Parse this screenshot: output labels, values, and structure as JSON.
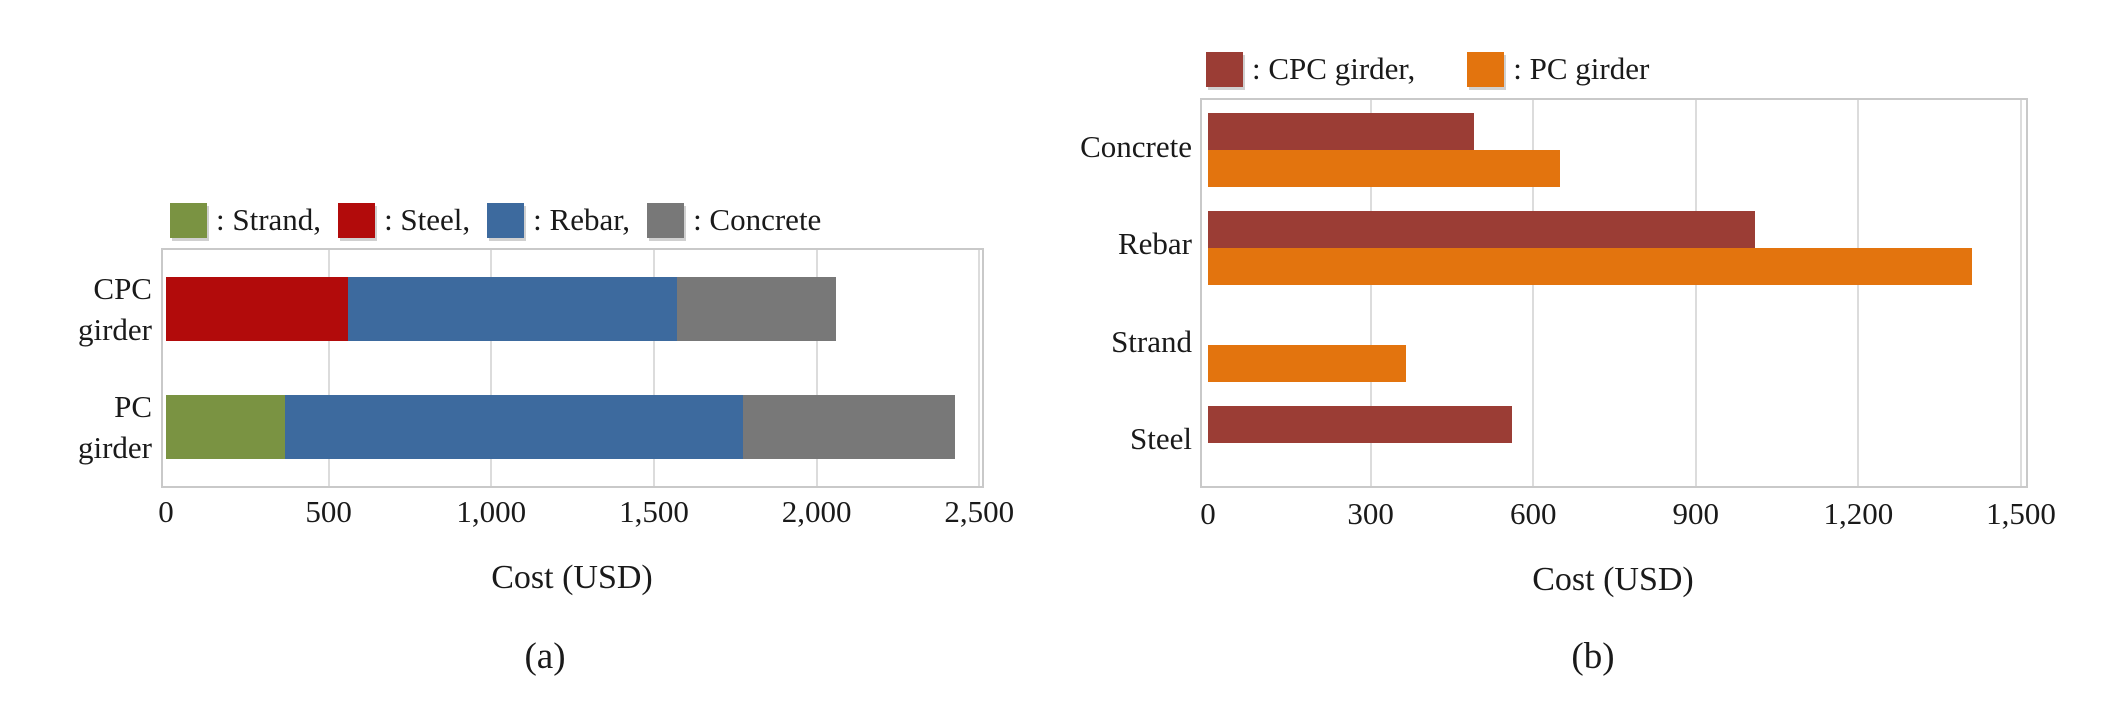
{
  "figure": {
    "background": "#ffffff",
    "text_color": "#1a1a1a"
  },
  "colors": {
    "strand": "#7A9342",
    "steel": "#B20B0B",
    "rebar": "#3D6A9E",
    "concrete": "#787878",
    "cpc_girder": "#9B3D35",
    "pc_girder": "#E3740E",
    "gridline": "#DCDCDC",
    "plot_border": "#C9C9C9"
  },
  "chart_data": [
    {
      "id": "a",
      "type": "bar",
      "orientation": "horizontal",
      "stacked": true,
      "caption": "(a)",
      "xlabel": "Cost (USD)",
      "xlim": [
        0,
        2500
      ],
      "xtick_values": [
        0,
        500,
        1000,
        1500,
        2000,
        2500
      ],
      "xtick_labels": [
        "0",
        "500",
        "1,000",
        "1,500",
        "2,000",
        "2,500"
      ],
      "grid": "vertical",
      "legend_position": "top",
      "legend": [
        {
          "label": ": Strand,",
          "color_key": "strand"
        },
        {
          "label": ": Steel,",
          "color_key": "steel"
        },
        {
          "label": ": Rebar,",
          "color_key": "rebar"
        },
        {
          "label": ": Concrete",
          "color_key": "concrete"
        }
      ],
      "categories": [
        "CPC\ngirder",
        "PC\ngirder"
      ],
      "series": [
        {
          "name": "Strand",
          "color_key": "strand",
          "values": [
            0,
            365
          ]
        },
        {
          "name": "Steel",
          "color_key": "steel",
          "values": [
            560,
            0
          ]
        },
        {
          "name": "Rebar",
          "color_key": "rebar",
          "values": [
            1010,
            1410
          ]
        },
        {
          "name": "Concrete",
          "color_key": "concrete",
          "values": [
            490,
            650
          ]
        }
      ]
    },
    {
      "id": "b",
      "type": "bar",
      "orientation": "horizontal",
      "stacked": false,
      "caption": "(b)",
      "xlabel": "Cost (USD)",
      "xlim": [
        0,
        1500
      ],
      "xtick_values": [
        0,
        300,
        600,
        900,
        1200,
        1500
      ],
      "xtick_labels": [
        "0",
        "300",
        "600",
        "900",
        "1,200",
        "1,500"
      ],
      "grid": "vertical",
      "legend_position": "top",
      "legend": [
        {
          "label": ": CPC girder,",
          "color_key": "cpc_girder"
        },
        {
          "label": ": PC girder",
          "color_key": "pc_girder"
        }
      ],
      "categories": [
        "Concrete",
        "Rebar",
        "Strand",
        "Steel"
      ],
      "series": [
        {
          "name": "CPC girder",
          "color_key": "cpc_girder",
          "values": [
            490,
            1010,
            null,
            560
          ]
        },
        {
          "name": "PC girder",
          "color_key": "pc_girder",
          "values": [
            650,
            1410,
            365,
            null
          ]
        }
      ]
    }
  ]
}
